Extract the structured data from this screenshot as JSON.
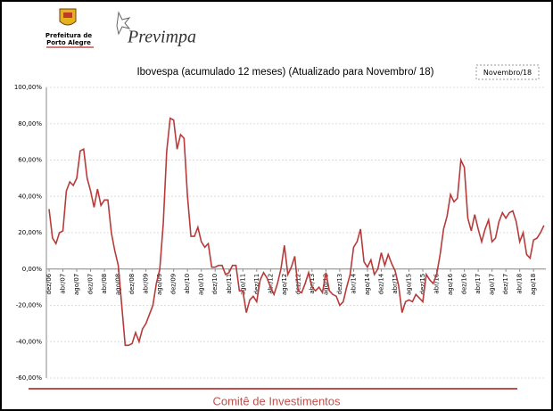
{
  "header": {
    "org_line1": "Prefeitura de",
    "org_line2": "Porto Alegre",
    "brand": "Previmpa"
  },
  "footer": "Comitê de Investimentos",
  "chart_data": {
    "type": "line",
    "title": "Ibovespa (acumulado 12 meses) (Atualizado para Novembro/ 18)",
    "date_box": "Novembro/18",
    "color": "#b83b3b",
    "grid": true,
    "ylim": [
      -60,
      100
    ],
    "yticks": [
      {
        "value": -60,
        "label": "-60,00%"
      },
      {
        "value": -40,
        "label": "-40,00%"
      },
      {
        "value": -20,
        "label": "-20,00%"
      },
      {
        "value": 0,
        "label": "0,00%"
      },
      {
        "value": 20,
        "label": "20,00%"
      },
      {
        "value": 40,
        "label": "40,00%"
      },
      {
        "value": 60,
        "label": "60,00%"
      },
      {
        "value": 80,
        "label": "80,00%"
      },
      {
        "value": 100,
        "label": "100,00%"
      }
    ],
    "categories": [
      "dez/06",
      null,
      null,
      null,
      "abr/07",
      null,
      null,
      null,
      "ago/07",
      null,
      null,
      null,
      "dez/07",
      null,
      null,
      null,
      "abr/08",
      null,
      null,
      null,
      "ago/08",
      null,
      null,
      null,
      "dez/08",
      null,
      null,
      null,
      "abr/09",
      null,
      null,
      null,
      "ago/09",
      null,
      null,
      null,
      "dez/09",
      null,
      null,
      null,
      "abr/10",
      null,
      null,
      null,
      "ago/10",
      null,
      null,
      null,
      "dez/10",
      null,
      null,
      null,
      "abr/11",
      null,
      null,
      null,
      "ago/11",
      null,
      null,
      null,
      "dez/11",
      null,
      null,
      null,
      "abr/12",
      null,
      null,
      null,
      "ago/12",
      null,
      null,
      null,
      "dez/12",
      null,
      null,
      null,
      "abr/13",
      null,
      null,
      null,
      "ago/13",
      null,
      null,
      null,
      "dez/13",
      null,
      null,
      null,
      "abr/14",
      null,
      null,
      null,
      "ago/14",
      null,
      null,
      null,
      "dez/14",
      null,
      null,
      null,
      "abr/15",
      null,
      null,
      null,
      "ago/15",
      null,
      null,
      null,
      "dez/15",
      null,
      null,
      null,
      "abr/16",
      null,
      null,
      null,
      "ago/16",
      null,
      null,
      null,
      "dez/16",
      null,
      null,
      null,
      "abr/17",
      null,
      null,
      null,
      "ago/17",
      null,
      null,
      null,
      "dez/17",
      null,
      null,
      null,
      "abr/18",
      null,
      null,
      null,
      "ago/18",
      null,
      null,
      null
    ],
    "values": [
      33,
      17,
      14,
      20,
      21,
      43,
      48,
      46,
      50,
      65,
      66,
      50,
      43,
      34,
      44,
      35,
      38,
      38,
      20,
      10,
      2,
      -20,
      -42,
      -42,
      -41,
      -35,
      -40,
      -33,
      -30,
      -25,
      -20,
      -8,
      0,
      25,
      65,
      83,
      82,
      66,
      74,
      72,
      40,
      18,
      18,
      23,
      15,
      12,
      14,
      1,
      1,
      2,
      2,
      -3,
      -2,
      2,
      2,
      -12,
      -12,
      -24,
      -17,
      -15,
      -18,
      -6,
      -2,
      -5,
      -10,
      -14,
      -8,
      0,
      13,
      -3,
      1,
      7,
      -12,
      -13,
      -8,
      -2,
      -10,
      -12,
      -10,
      -13,
      -2,
      -12,
      -14,
      -15,
      -20,
      -18,
      -10,
      -3,
      12,
      15,
      22,
      4,
      1,
      5,
      -3,
      0,
      9,
      2,
      8,
      3,
      -1,
      -9,
      -24,
      -18,
      -17,
      -18,
      -14,
      -16,
      -18,
      -3,
      -6,
      -8,
      -3,
      8,
      22,
      29,
      41,
      37,
      39,
      60,
      56,
      28,
      21,
      30,
      22,
      15,
      22,
      27,
      15,
      17,
      26,
      31,
      28,
      31,
      32,
      26,
      15,
      20,
      8,
      6,
      16,
      17,
      20,
      24
    ]
  }
}
